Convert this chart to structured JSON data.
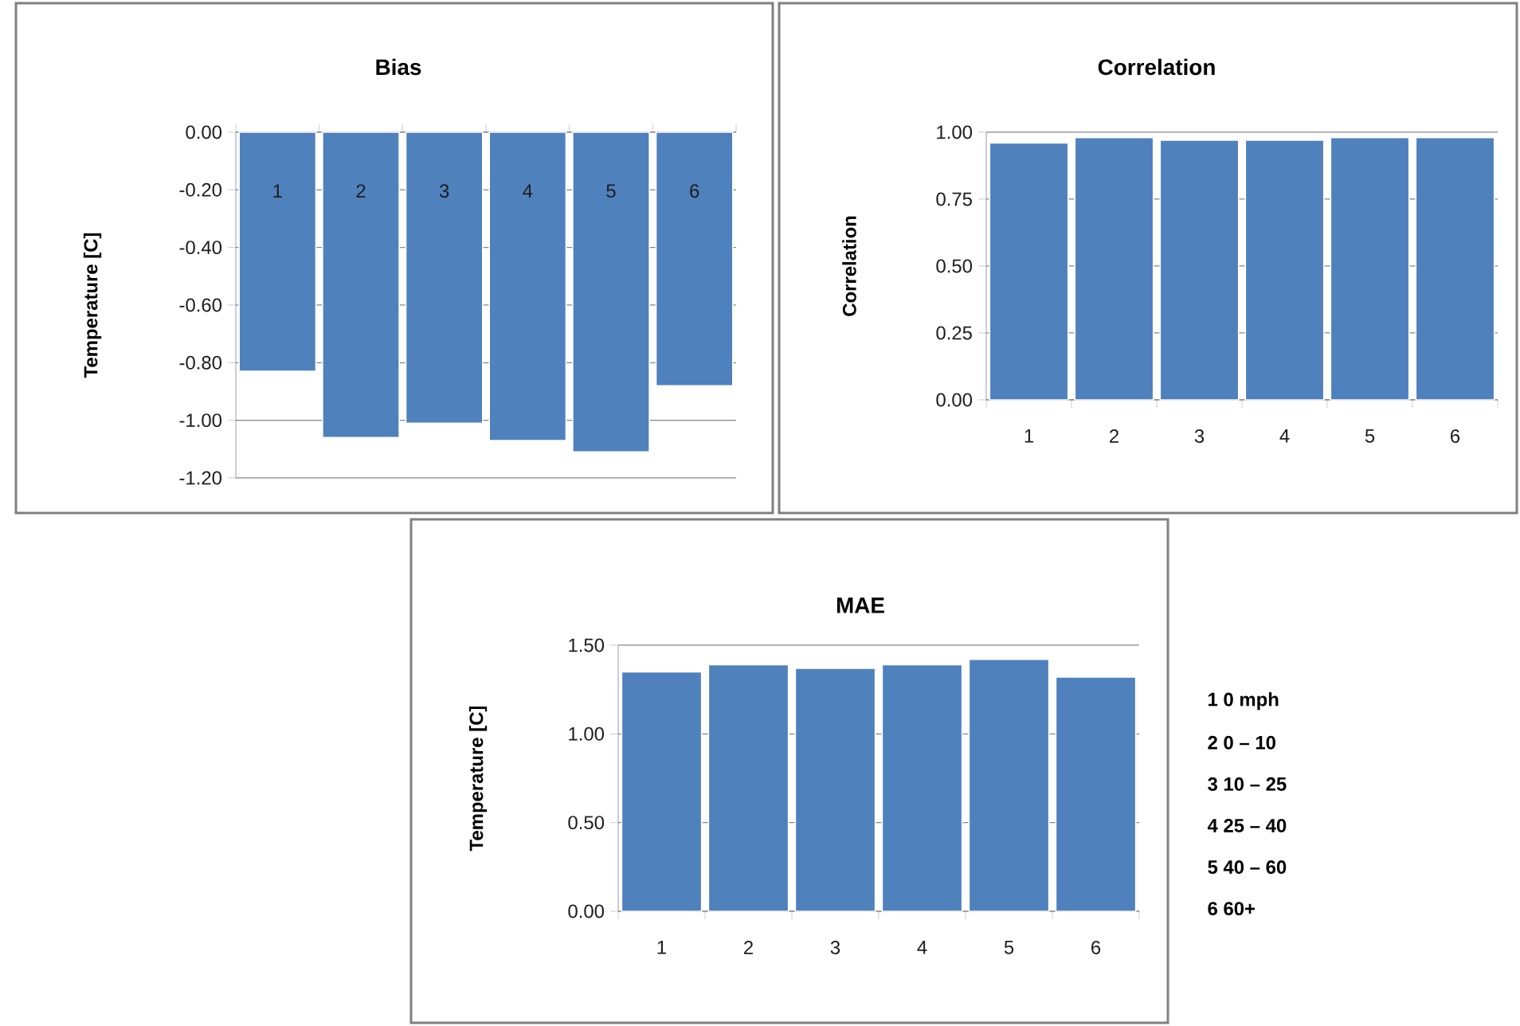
{
  "chart_data": [
    {
      "type": "bar",
      "title": "Bias",
      "ylabel": "Temperature [C]",
      "categories": [
        "1",
        "2",
        "3",
        "4",
        "5",
        "6"
      ],
      "values": [
        -0.83,
        -1.06,
        -1.01,
        -1.07,
        -1.11,
        -0.88
      ],
      "color": "#4f81bd",
      "ylim": [
        -1.2,
        0
      ],
      "yticks": [
        {
          "value": -1.2,
          "label": "-1.20"
        },
        {
          "value": -1.0,
          "label": "-1.00"
        },
        {
          "value": -0.8,
          "label": "-0.80"
        },
        {
          "value": -0.6,
          "label": "-0.60"
        },
        {
          "value": -0.4,
          "label": "-0.40"
        },
        {
          "value": -0.2,
          "label": "-0.20"
        },
        {
          "value": 0,
          "label": "0.00"
        }
      ],
      "grid": "y"
    },
    {
      "type": "bar",
      "title": "Correlation",
      "ylabel": "Correlation",
      "categories": [
        "1",
        "2",
        "3",
        "4",
        "5",
        "6"
      ],
      "values": [
        0.96,
        0.98,
        0.97,
        0.97,
        0.98,
        0.98
      ],
      "color": "#4f81bd",
      "ylim": [
        0,
        1
      ],
      "yticks": [
        {
          "value": 0,
          "label": "0.00"
        },
        {
          "value": 0.25,
          "label": "0.25"
        },
        {
          "value": 0.5,
          "label": "0.50"
        },
        {
          "value": 0.75,
          "label": "0.75"
        },
        {
          "value": 1,
          "label": "1.00"
        }
      ],
      "grid": "y"
    },
    {
      "type": "bar",
      "title": "MAE",
      "ylabel": "Temperature [C]",
      "categories": [
        "1",
        "2",
        "3",
        "4",
        "5",
        "6"
      ],
      "values": [
        1.35,
        1.39,
        1.37,
        1.39,
        1.42,
        1.32
      ],
      "color": "#4f81bd",
      "ylim": [
        0,
        1.5
      ],
      "yticks": [
        {
          "value": 0,
          "label": "0.00"
        },
        {
          "value": 0.5,
          "label": "0.50"
        },
        {
          "value": 1,
          "label": "1.00"
        },
        {
          "value": 1.5,
          "label": "1.50"
        }
      ],
      "grid": "y",
      "annotations": [
        "1  0 mph",
        "2  0 – 10",
        "3  10 – 25",
        "4  25 – 40",
        "5  40 – 60",
        "6  60+"
      ]
    }
  ]
}
